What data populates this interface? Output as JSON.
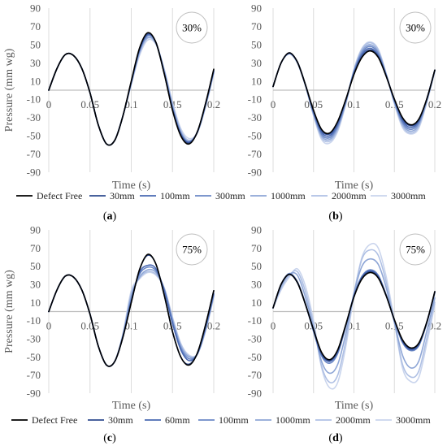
{
  "chart_data": [
    {
      "type": "line",
      "panel_label": "(a)",
      "badge": "30%",
      "xlabel": "Time (s)",
      "ylabel": "Pressure (mm wg)",
      "xlim": [
        0,
        0.2
      ],
      "ylim": [
        -90,
        90
      ],
      "xticks": [
        0,
        0.05,
        0.1,
        0.15,
        0.2
      ],
      "xtick_labels": [
        "0",
        "0.05",
        "0.1",
        "0.15",
        "0.2"
      ],
      "yticks": [
        90,
        70,
        50,
        30,
        10,
        -10,
        -30,
        -50,
        -70,
        -90
      ],
      "ytick_labels": [
        "90",
        "70",
        "50",
        "30",
        "10",
        "-10",
        "-30",
        "-50",
        "-70",
        "-90"
      ],
      "grid": "vertical",
      "legend_position": "bottom",
      "x": [
        0,
        0.01,
        0.02,
        0.03,
        0.04,
        0.05,
        0.06,
        0.07,
        0.08,
        0.09,
        0.1,
        0.11,
        0.12,
        0.13,
        0.14,
        0.15,
        0.16,
        0.17,
        0.18,
        0.19,
        0.2
      ],
      "series": [
        {
          "name": "Defect Free",
          "color": "#000000",
          "values": [
            0,
            24,
            39,
            38,
            24,
            -3,
            -38,
            -59,
            -55,
            -28,
            10,
            46,
            63,
            52,
            18,
            -22,
            -50,
            -59,
            -46,
            -15,
            23
          ]
        },
        {
          "name": "30mm",
          "color": "#2f4b8f",
          "values": [
            0,
            24,
            39,
            38,
            24,
            -3,
            -38,
            -59,
            -55,
            -28,
            9,
            45,
            62,
            52,
            18,
            -21,
            -49,
            -58,
            -46,
            -15,
            22
          ]
        },
        {
          "name": "100mm",
          "color": "#4a69b2",
          "values": [
            0,
            24,
            39,
            38,
            24,
            -3,
            -38,
            -59,
            -55,
            -28,
            9,
            44,
            61,
            52,
            19,
            -20,
            -48,
            -57,
            -46,
            -16,
            21
          ]
        },
        {
          "name": "300mm",
          "color": "#6b88c6",
          "values": [
            0,
            24,
            39,
            38,
            24,
            -3,
            -38,
            -59,
            -55,
            -28,
            8,
            43,
            60,
            52,
            20,
            -19,
            -47,
            -57,
            -46,
            -16,
            21
          ]
        },
        {
          "name": "1000mm",
          "color": "#8ea6d6",
          "values": [
            0,
            24,
            39,
            38,
            24,
            -3,
            -38,
            -59,
            -55,
            -28,
            8,
            42,
            58,
            51,
            21,
            -17,
            -46,
            -56,
            -47,
            -17,
            20
          ]
        },
        {
          "name": "2000mm",
          "color": "#afc0e4",
          "values": [
            0,
            24,
            39,
            38,
            24,
            -3,
            -38,
            -59,
            -55,
            -28,
            7,
            40,
            57,
            51,
            22,
            -15,
            -44,
            -55,
            -47,
            -18,
            19
          ]
        },
        {
          "name": "3000mm",
          "color": "#cad5ed",
          "values": [
            0,
            24,
            39,
            38,
            24,
            -3,
            -38,
            -59,
            -55,
            -28,
            6,
            38,
            55,
            50,
            23,
            -13,
            -42,
            -53,
            -47,
            -19,
            18
          ]
        }
      ]
    },
    {
      "type": "line",
      "panel_label": "(b)",
      "badge": "30%",
      "xlabel": "Time (s)",
      "ylabel": "",
      "xlim": [
        0,
        0.2
      ],
      "ylim": [
        -90,
        90
      ],
      "xticks": [
        0,
        0.05,
        0.1,
        0.15,
        0.2
      ],
      "xtick_labels": [
        "0",
        "0.05",
        "0.1",
        "0.15",
        "0.2"
      ],
      "yticks": [
        90,
        70,
        50,
        30,
        10,
        -10,
        -30,
        -50,
        -70,
        -90
      ],
      "ytick_labels": [
        "90",
        "70",
        "50",
        "30",
        "10",
        "-10",
        "-30",
        "-50",
        "-70",
        "-90"
      ],
      "grid": "vertical",
      "legend_position": "bottom",
      "x": [
        0,
        0.01,
        0.02,
        0.03,
        0.04,
        0.05,
        0.06,
        0.07,
        0.08,
        0.09,
        0.1,
        0.11,
        0.12,
        0.13,
        0.14,
        0.15,
        0.16,
        0.17,
        0.18,
        0.19,
        0.2
      ],
      "series": [
        {
          "name": "Defect Free",
          "color": "#000000",
          "values": [
            4,
            30,
            41,
            31,
            6,
            -22,
            -43,
            -47,
            -34,
            -10,
            17,
            36,
            43,
            36,
            15,
            -10,
            -30,
            -38,
            -32,
            -10,
            22
          ]
        },
        {
          "name": "30mm",
          "color": "#2f4b8f",
          "values": [
            4,
            30,
            41,
            31,
            6,
            -23,
            -44,
            -48,
            -35,
            -10,
            18,
            37,
            44,
            37,
            15,
            -10,
            -31,
            -39,
            -33,
            -10,
            22
          ]
        },
        {
          "name": "100mm",
          "color": "#4a69b2",
          "values": [
            4,
            30,
            40,
            31,
            6,
            -24,
            -46,
            -50,
            -37,
            -11,
            19,
            39,
            46,
            38,
            16,
            -11,
            -33,
            -41,
            -34,
            -10,
            22
          ]
        },
        {
          "name": "300mm",
          "color": "#6b88c6",
          "values": [
            4,
            30,
            40,
            31,
            6,
            -25,
            -48,
            -52,
            -39,
            -12,
            20,
            41,
            48,
            40,
            16,
            -12,
            -35,
            -43,
            -36,
            -11,
            22
          ]
        },
        {
          "name": "1000mm",
          "color": "#8ea6d6",
          "values": [
            4,
            30,
            40,
            30,
            5,
            -26,
            -50,
            -54,
            -41,
            -13,
            21,
            43,
            50,
            42,
            17,
            -13,
            -37,
            -45,
            -38,
            -12,
            21
          ]
        },
        {
          "name": "2000mm",
          "color": "#afc0e4",
          "values": [
            4,
            30,
            40,
            30,
            5,
            -27,
            -52,
            -56,
            -43,
            -14,
            22,
            45,
            52,
            44,
            17,
            -14,
            -39,
            -47,
            -40,
            -13,
            21
          ]
        },
        {
          "name": "3000mm",
          "color": "#cad5ed",
          "values": [
            4,
            30,
            40,
            30,
            5,
            -28,
            -54,
            -58,
            -45,
            -15,
            23,
            46,
            53,
            45,
            18,
            -15,
            -41,
            -48,
            -42,
            -14,
            21
          ]
        }
      ]
    },
    {
      "type": "line",
      "panel_label": "(c)",
      "badge": "75%",
      "xlabel": "Time (s)",
      "ylabel": "Pressure (mm wg)",
      "xlim": [
        0,
        0.2
      ],
      "ylim": [
        -90,
        90
      ],
      "xticks": [
        0,
        0.05,
        0.1,
        0.15,
        0.2
      ],
      "xtick_labels": [
        "0",
        "0.05",
        "0.1",
        "0.15",
        "0.2"
      ],
      "yticks": [
        90,
        70,
        50,
        30,
        10,
        -10,
        -30,
        -50,
        -70,
        -90
      ],
      "ytick_labels": [
        "90",
        "70",
        "50",
        "30",
        "10",
        "-10",
        "-30",
        "-50",
        "-70",
        "-90"
      ],
      "grid": "vertical",
      "legend_position": "bottom",
      "x": [
        0,
        0.01,
        0.02,
        0.03,
        0.04,
        0.05,
        0.06,
        0.07,
        0.08,
        0.09,
        0.1,
        0.11,
        0.12,
        0.13,
        0.14,
        0.15,
        0.16,
        0.17,
        0.18,
        0.19,
        0.2
      ],
      "series": [
        {
          "name": "Defect Free",
          "color": "#000000",
          "values": [
            0,
            24,
            39,
            38,
            24,
            -3,
            -38,
            -59,
            -55,
            -28,
            10,
            46,
            63,
            52,
            18,
            -22,
            -50,
            -59,
            -46,
            -15,
            23
          ]
        },
        {
          "name": "30mm",
          "color": "#2f4b8f",
          "values": [
            0,
            24,
            39,
            38,
            24,
            -3,
            -38,
            -59,
            -55,
            -28,
            10,
            46,
            62,
            52,
            18,
            -22,
            -50,
            -58,
            -46,
            -15,
            23
          ]
        },
        {
          "name": "60mm",
          "color": "#4a69b2",
          "values": [
            0,
            24,
            39,
            38,
            24,
            -3,
            -38,
            -59,
            -55,
            -27,
            12,
            43,
            51,
            47,
            23,
            -13,
            -42,
            -54,
            -47,
            -18,
            20
          ]
        },
        {
          "name": "100mm",
          "color": "#6b88c6",
          "values": [
            0,
            24,
            39,
            38,
            24,
            -3,
            -38,
            -59,
            -55,
            -27,
            14,
            41,
            49,
            45,
            24,
            -11,
            -40,
            -52,
            -47,
            -19,
            19
          ]
        },
        {
          "name": "1000mm",
          "color": "#8ea6d6",
          "values": [
            0,
            24,
            39,
            38,
            24,
            -3,
            -38,
            -59,
            -55,
            -26,
            17,
            38,
            46,
            43,
            25,
            -9,
            -38,
            -50,
            -47,
            -20,
            18
          ]
        },
        {
          "name": "2000mm",
          "color": "#afc0e4",
          "values": [
            0,
            24,
            39,
            38,
            24,
            -3,
            -38,
            -59,
            -55,
            -25,
            20,
            37,
            44,
            41,
            26,
            -7,
            -36,
            -49,
            -47,
            -21,
            17
          ]
        },
        {
          "name": "3000mm",
          "color": "#cad5ed",
          "values": [
            0,
            24,
            39,
            38,
            24,
            -3,
            -38,
            -59,
            -55,
            -24,
            23,
            36,
            43,
            40,
            26,
            -6,
            -35,
            -48,
            -47,
            -22,
            16
          ]
        }
      ]
    },
    {
      "type": "line",
      "panel_label": "(d)",
      "badge": "75%",
      "xlabel": "Time (s)",
      "ylabel": "",
      "xlim": [
        0,
        0.2
      ],
      "ylim": [
        -90,
        90
      ],
      "xticks": [
        0,
        0.05,
        0.1,
        0.15,
        0.2
      ],
      "xtick_labels": [
        "0",
        "0.05",
        "0.1",
        "0.15",
        "0.2"
      ],
      "yticks": [
        90,
        70,
        50,
        30,
        10,
        -10,
        -30,
        -50,
        -70,
        -90
      ],
      "ytick_labels": [
        "90",
        "70",
        "50",
        "30",
        "10",
        "-10",
        "-30",
        "-50",
        "-70",
        "-90"
      ],
      "grid": "vertical",
      "legend_position": "bottom",
      "x": [
        0,
        0.01,
        0.02,
        0.03,
        0.04,
        0.05,
        0.06,
        0.07,
        0.08,
        0.09,
        0.1,
        0.11,
        0.12,
        0.13,
        0.14,
        0.15,
        0.16,
        0.17,
        0.18,
        0.19,
        0.2
      ],
      "series": [
        {
          "name": "Defect Free",
          "color": "#000000",
          "values": [
            4,
            30,
            41,
            32,
            8,
            -20,
            -45,
            -53,
            -42,
            -14,
            16,
            36,
            43,
            37,
            17,
            -9,
            -31,
            -40,
            -35,
            -12,
            22
          ]
        },
        {
          "name": "30mm",
          "color": "#2f4b8f",
          "values": [
            4,
            30,
            41,
            32,
            8,
            -20,
            -46,
            -54,
            -43,
            -15,
            16,
            37,
            44,
            38,
            17,
            -9,
            -32,
            -41,
            -36,
            -12,
            22
          ]
        },
        {
          "name": "60mm",
          "color": "#4a69b2",
          "values": [
            4,
            30,
            41,
            32,
            8,
            -21,
            -47,
            -55,
            -44,
            -15,
            17,
            38,
            45,
            39,
            18,
            -10,
            -33,
            -42,
            -37,
            -13,
            21
          ]
        },
        {
          "name": "100mm",
          "color": "#6b88c6",
          "values": [
            4,
            30,
            42,
            33,
            9,
            -22,
            -49,
            -57,
            -46,
            -16,
            18,
            39,
            46,
            40,
            18,
            -10,
            -34,
            -43,
            -38,
            -13,
            21
          ]
        },
        {
          "name": "1000mm",
          "color": "#8ea6d6",
          "values": [
            4,
            28,
            41,
            40,
            16,
            -18,
            -55,
            -68,
            -58,
            -24,
            20,
            50,
            58,
            52,
            26,
            -12,
            -48,
            -62,
            -55,
            -22,
            15
          ]
        },
        {
          "name": "2000mm",
          "color": "#afc0e4",
          "values": [
            4,
            26,
            40,
            44,
            22,
            -14,
            -60,
            -78,
            -70,
            -32,
            20,
            58,
            68,
            62,
            32,
            -12,
            -58,
            -72,
            -66,
            -30,
            10
          ]
        },
        {
          "name": "3000mm",
          "color": "#cad5ed",
          "values": [
            4,
            24,
            38,
            47,
            28,
            -10,
            -62,
            -84,
            -78,
            -38,
            18,
            60,
            74,
            70,
            38,
            -10,
            -62,
            -77,
            -73,
            -36,
            8
          ]
        }
      ]
    }
  ]
}
